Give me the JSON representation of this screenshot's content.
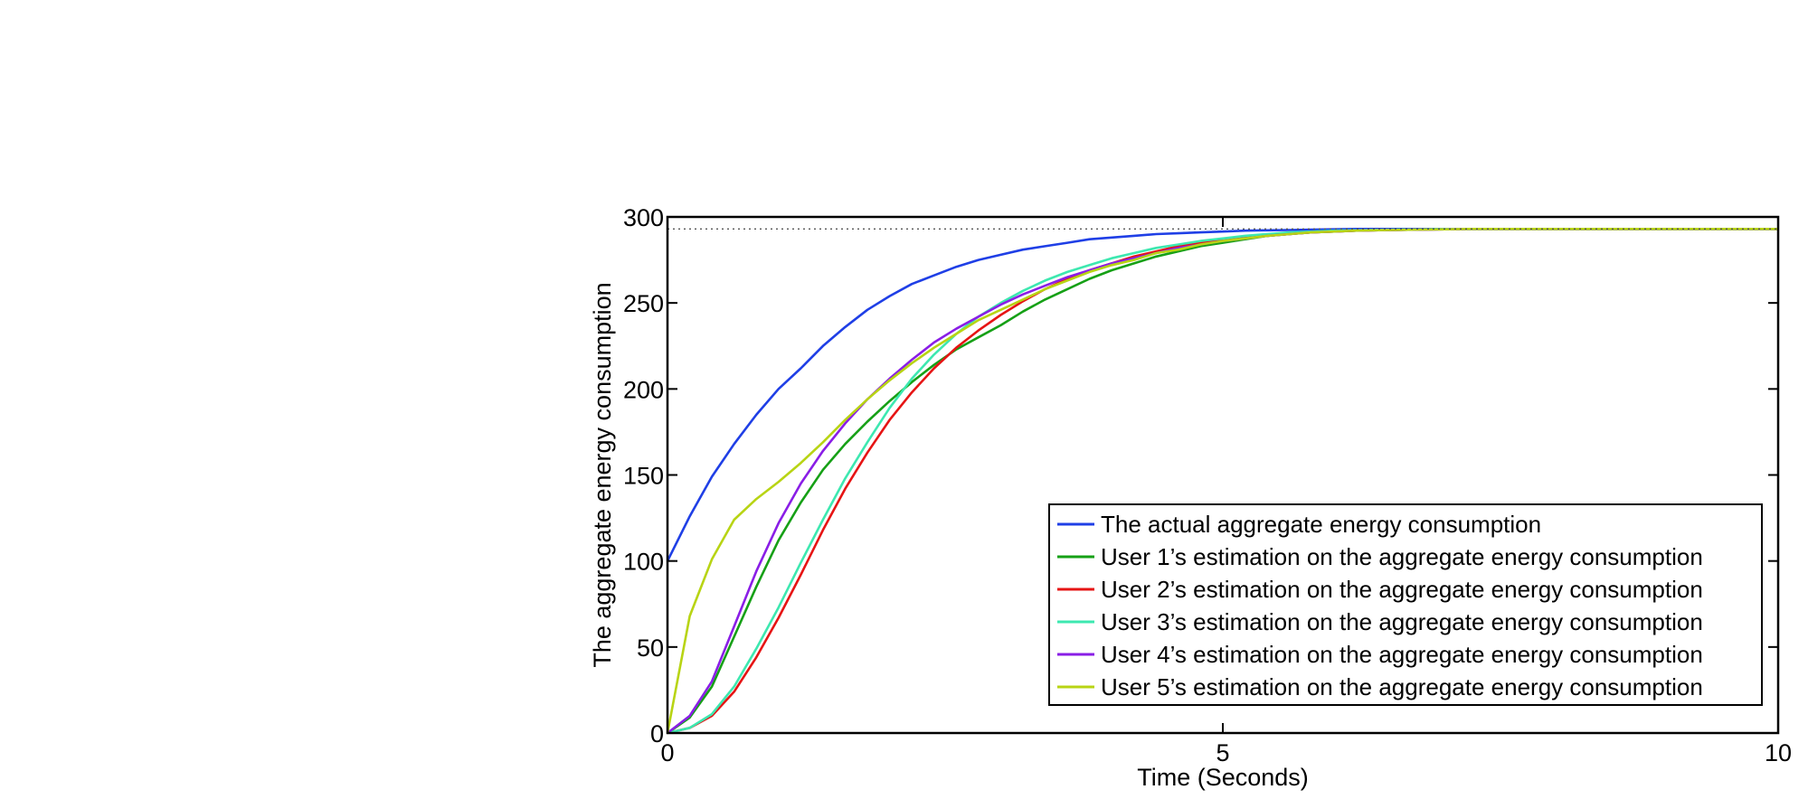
{
  "chart_data": {
    "type": "line",
    "title": "",
    "xlabel": "Time (Seconds)",
    "ylabel": "The aggregate energy consumption",
    "xlim": [
      0,
      10
    ],
    "ylim": [
      0,
      300
    ],
    "xticks": [
      0,
      5,
      10
    ],
    "yticks": [
      0,
      50,
      100,
      150,
      200,
      250,
      300
    ],
    "grid": false,
    "legend_position": "bottom-right",
    "reference_line": {
      "y": 293,
      "style": "dotted"
    },
    "x": [
      0,
      0.2,
      0.4,
      0.6,
      0.8,
      1.0,
      1.2,
      1.4,
      1.6,
      1.8,
      2.0,
      2.2,
      2.4,
      2.6,
      2.8,
      3.0,
      3.2,
      3.4,
      3.6,
      3.8,
      4.0,
      4.2,
      4.4,
      4.6,
      4.8,
      5.0,
      5.2,
      5.4,
      5.6,
      5.8,
      6.0,
      6.2,
      6.4,
      6.6,
      6.8,
      7.0,
      7.2,
      7.4,
      7.6,
      7.8,
      8.0,
      8.2,
      8.4,
      8.6,
      8.8,
      9.0,
      9.2,
      9.4,
      9.6,
      9.8,
      10.0
    ],
    "series": [
      {
        "name": "The actual aggregate energy consumption",
        "color": "#1f3fe6",
        "values": [
          100,
          126,
          149,
          168,
          185,
          200,
          212,
          225,
          236,
          246,
          254,
          261,
          266,
          271,
          275,
          278,
          281,
          283,
          285,
          287,
          288,
          289,
          290,
          290.5,
          291,
          291.5,
          292,
          292.2,
          292.4,
          292.6,
          292.8,
          293,
          293,
          293,
          293,
          293,
          293,
          293,
          293,
          293,
          293,
          293,
          293,
          293,
          293,
          293,
          293,
          293,
          293,
          293,
          293
        ]
      },
      {
        "name": "User 1’s estimation on the aggregate energy consumption",
        "color": "#16a016",
        "values": [
          0,
          9,
          27,
          56,
          85,
          112,
          134,
          153,
          168,
          181,
          193,
          204,
          214,
          223,
          230,
          237,
          245,
          252,
          258,
          264,
          269,
          273,
          277,
          280,
          283,
          285,
          287,
          289,
          290,
          291,
          291.5,
          292,
          292.3,
          292.5,
          292.7,
          292.8,
          293,
          293,
          293,
          293,
          293,
          293,
          293,
          293,
          293,
          293,
          293,
          293,
          293,
          293,
          293
        ]
      },
      {
        "name": "User 2’s estimation on the aggregate energy consumption",
        "color": "#e61414",
        "values": [
          0,
          3,
          10,
          24,
          44,
          67,
          92,
          118,
          142,
          163,
          182,
          198,
          212,
          224,
          234,
          243,
          251,
          258,
          264,
          269,
          273,
          277,
          280,
          283,
          285,
          287,
          288,
          289,
          290,
          291,
          291.5,
          292,
          292.3,
          292.5,
          292.7,
          292.8,
          293,
          293,
          293,
          293,
          293,
          293,
          293,
          293,
          293,
          293,
          293,
          293,
          293,
          293,
          293
        ]
      },
      {
        "name": "User 3’s estimation on the aggregate energy consumption",
        "color": "#3de8b0",
        "values": [
          0,
          3,
          11,
          27,
          49,
          73,
          99,
          124,
          148,
          169,
          189,
          206,
          220,
          232,
          242,
          250,
          257,
          263,
          268,
          272,
          276,
          279,
          282,
          284,
          286,
          287.5,
          289,
          290,
          291,
          291.5,
          292,
          292.3,
          292.5,
          292.7,
          292.8,
          293,
          293,
          293,
          293,
          293,
          293,
          293,
          293,
          293,
          293,
          293,
          293,
          293,
          293,
          293,
          293
        ]
      },
      {
        "name": "User 4’s estimation on the aggregate energy consumption",
        "color": "#8a1ee6",
        "values": [
          0,
          10,
          30,
          62,
          94,
          122,
          145,
          164,
          180,
          194,
          206,
          217,
          227,
          235,
          242,
          249,
          255,
          260,
          265,
          269,
          273,
          276,
          279,
          282,
          284,
          286,
          287.5,
          289,
          290,
          291,
          291.5,
          292,
          292.3,
          292.5,
          292.7,
          292.8,
          293,
          293,
          293,
          293,
          293,
          293,
          293,
          293,
          293,
          293,
          293,
          293,
          293,
          293,
          293
        ]
      },
      {
        "name": "User 5’s estimation on the aggregate energy consumption",
        "color": "#b8d414",
        "values": [
          0,
          68,
          101,
          124,
          136,
          146,
          157,
          169,
          182,
          194,
          205,
          215,
          224,
          232,
          240,
          246,
          252,
          258,
          263,
          268,
          272,
          275,
          279,
          281,
          284,
          286,
          287.5,
          289,
          290,
          291,
          291.5,
          292,
          292.3,
          292.5,
          292.7,
          292.8,
          293,
          293,
          293,
          293,
          293,
          293,
          293,
          293,
          293,
          293,
          293,
          293,
          293,
          293,
          293
        ]
      }
    ]
  }
}
